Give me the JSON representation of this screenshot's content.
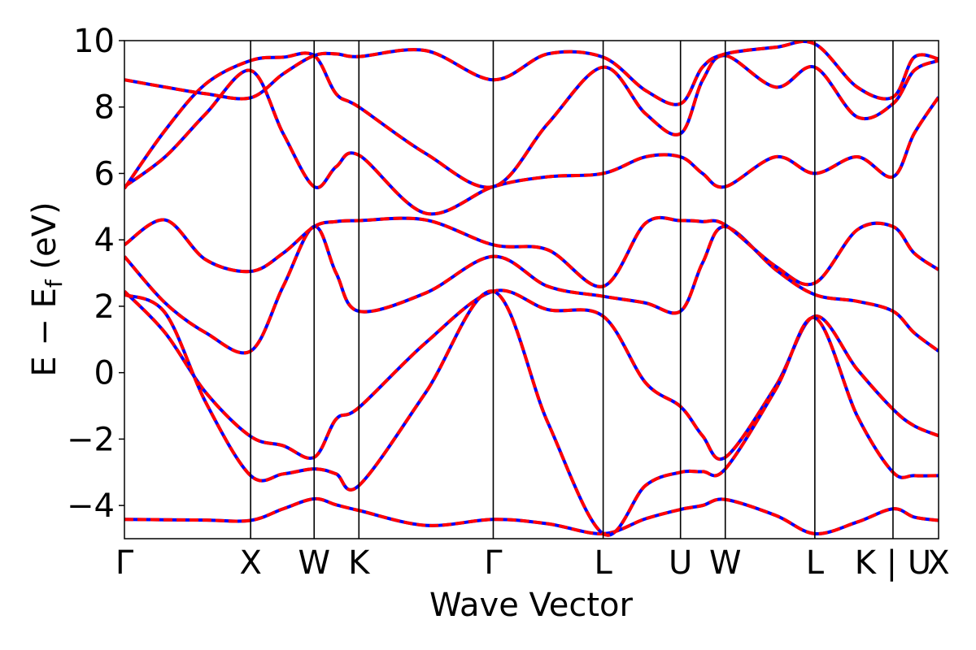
{
  "chart_data": {
    "type": "line",
    "xlabel": "Wave Vector",
    "ylabel": "E − E_f (eV)",
    "ylabel_parts": {
      "main": "E − E",
      "sub": "f",
      "unit": " (eV)"
    },
    "ylim": [
      -5,
      10
    ],
    "xlim": [
      0,
      1
    ],
    "yticks": [
      -4,
      -2,
      0,
      2,
      4,
      6,
      8,
      10
    ],
    "ytick_labels": [
      "−4",
      "−2",
      "0",
      "2",
      "4",
      "6",
      "8",
      "10"
    ],
    "high_symmetry_points": [
      {
        "label": "Γ",
        "x": 0.0
      },
      {
        "label": "X",
        "x": 0.155
      },
      {
        "label": "W",
        "x": 0.233
      },
      {
        "label": "K",
        "x": 0.288
      },
      {
        "label": "Γ",
        "x": 0.453
      },
      {
        "label": "L",
        "x": 0.588
      },
      {
        "label": "U",
        "x": 0.683
      },
      {
        "label": "W",
        "x": 0.738
      },
      {
        "label": "L",
        "x": 0.848
      },
      {
        "label": "K | U",
        "x": 0.944
      },
      {
        "label": "X",
        "x": 1.0
      }
    ],
    "grid": false,
    "legend": "none",
    "series_styles": [
      {
        "color": "#0000ff",
        "style": "solid"
      },
      {
        "color": "#ff0000",
        "style": "dashed"
      }
    ],
    "bands": [
      {
        "x": [
          0.0,
          0.05,
          0.1,
          0.155,
          0.195,
          0.233,
          0.26,
          0.288,
          0.37,
          0.453,
          0.52,
          0.588,
          0.64,
          0.683,
          0.71,
          0.738,
          0.8,
          0.848,
          0.9,
          0.944,
          0.97,
          1.0
        ],
        "y": [
          -4.42,
          -4.43,
          -4.44,
          -4.45,
          -4.1,
          -3.8,
          -3.98,
          -4.15,
          -4.6,
          -4.42,
          -4.55,
          -4.85,
          -4.4,
          -4.12,
          -4.0,
          -3.82,
          -4.3,
          -4.85,
          -4.5,
          -4.1,
          -4.35,
          -4.45
        ]
      },
      {
        "x": [
          0.0,
          0.05,
          0.1,
          0.155,
          0.195,
          0.233,
          0.26,
          0.288,
          0.37,
          0.453,
          0.52,
          0.588,
          0.64,
          0.683,
          0.71,
          0.738,
          0.8,
          0.848,
          0.9,
          0.944,
          0.97,
          1.0
        ],
        "y": [
          2.45,
          1.2,
          -0.6,
          -1.92,
          -2.2,
          -2.55,
          -1.4,
          -1.05,
          0.9,
          2.45,
          1.9,
          1.7,
          -0.3,
          -1.02,
          -1.9,
          -2.55,
          -0.4,
          1.7,
          0.1,
          -1.1,
          -1.6,
          -1.9
        ]
      },
      {
        "x": [
          0.0,
          0.05,
          0.1,
          0.155,
          0.195,
          0.233,
          0.26,
          0.288,
          0.37,
          0.453,
          0.52,
          0.588,
          0.64,
          0.683,
          0.71,
          0.738,
          0.8,
          0.848,
          0.9,
          0.944,
          0.97,
          1.0
        ],
        "y": [
          2.35,
          1.8,
          -0.9,
          -3.1,
          -3.05,
          -2.9,
          -3.05,
          -3.4,
          -0.6,
          2.45,
          -1.5,
          -4.85,
          -3.4,
          -3.0,
          -2.98,
          -2.9,
          -0.5,
          1.65,
          -1.3,
          -3.0,
          -3.1,
          -3.1
        ]
      },
      {
        "x": [
          0.0,
          0.05,
          0.1,
          0.155,
          0.195,
          0.233,
          0.26,
          0.288,
          0.37,
          0.453,
          0.52,
          0.588,
          0.64,
          0.683,
          0.71,
          0.738,
          0.8,
          0.848,
          0.9,
          0.944,
          0.97,
          1.0
        ],
        "y": [
          3.5,
          2.1,
          1.2,
          0.65,
          2.6,
          4.4,
          3.0,
          1.85,
          2.4,
          3.5,
          2.6,
          2.3,
          2.1,
          1.85,
          3.3,
          4.4,
          3.1,
          2.35,
          2.15,
          1.85,
          1.2,
          0.65
        ]
      },
      {
        "x": [
          0.0,
          0.05,
          0.1,
          0.155,
          0.195,
          0.233,
          0.26,
          0.288,
          0.37,
          0.453,
          0.52,
          0.588,
          0.64,
          0.683,
          0.71,
          0.738,
          0.8,
          0.848,
          0.9,
          0.944,
          0.97,
          1.0
        ],
        "y": [
          3.85,
          4.6,
          3.4,
          3.05,
          3.6,
          4.4,
          4.55,
          4.58,
          4.6,
          3.85,
          3.7,
          2.6,
          4.5,
          4.58,
          4.55,
          4.45,
          3.2,
          2.7,
          4.3,
          4.4,
          3.6,
          3.1
        ]
      },
      {
        "x": [
          0.0,
          0.05,
          0.1,
          0.155,
          0.195,
          0.233,
          0.26,
          0.288,
          0.37,
          0.453,
          0.52,
          0.588,
          0.64,
          0.683,
          0.71,
          0.738,
          0.8,
          0.848,
          0.9,
          0.944,
          0.97,
          1.0
        ],
        "y": [
          5.6,
          6.5,
          7.8,
          9.1,
          7.2,
          5.6,
          6.2,
          6.55,
          4.8,
          5.6,
          5.9,
          6.0,
          6.5,
          6.5,
          6.0,
          5.6,
          6.5,
          6.0,
          6.5,
          5.9,
          7.2,
          8.3
        ]
      },
      {
        "x": [
          0.0,
          0.05,
          0.1,
          0.155,
          0.195,
          0.233,
          0.26,
          0.288,
          0.37,
          0.453,
          0.52,
          0.588,
          0.64,
          0.683,
          0.71,
          0.738,
          0.8,
          0.848,
          0.9,
          0.944,
          0.97,
          1.0
        ],
        "y": [
          5.55,
          7.3,
          8.7,
          9.4,
          9.5,
          9.55,
          8.4,
          8.0,
          6.6,
          5.6,
          7.5,
          9.2,
          7.8,
          7.2,
          8.8,
          9.55,
          8.6,
          9.2,
          7.7,
          8.1,
          9.1,
          9.4
        ]
      },
      {
        "x": [
          0.0,
          0.05,
          0.1,
          0.155,
          0.195,
          0.233,
          0.26,
          0.288,
          0.37,
          0.453,
          0.52,
          0.588,
          0.64,
          0.683,
          0.71,
          0.738,
          0.8,
          0.848,
          0.9,
          0.944,
          0.97,
          1.0
        ],
        "y": [
          8.82,
          8.6,
          8.4,
          8.28,
          9.0,
          9.55,
          9.6,
          9.52,
          9.7,
          8.82,
          9.6,
          9.5,
          8.5,
          8.1,
          9.2,
          9.6,
          9.8,
          9.9,
          8.6,
          8.3,
          9.5,
          9.45
        ]
      }
    ]
  }
}
